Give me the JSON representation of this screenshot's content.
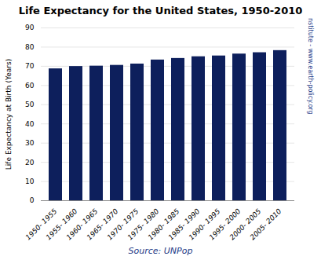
{
  "chart_data": {
    "type": "bar",
    "title": "Life Expectancy  for the United States, 1950-2010",
    "ylabel": "Life Expectancy at Birth (Years)",
    "annotations": [
      {
        "text": "Source: UNPop",
        "color": "#1f3c88"
      },
      {
        "text": "Earth Policy Institute - www.earth-policy.org",
        "color": "#1f3c88"
      }
    ],
    "categories": [
      "1950- 1955",
      "1955- 1960",
      "1960- 1965",
      "1965- 1970",
      "1970- 1975",
      "1975- 1980",
      "1980- 1985",
      "1985- 1990",
      "1990- 1995",
      "1995- 2000",
      "2000- 2005",
      "2005- 2010"
    ],
    "values": [
      68.7,
      69.9,
      70.1,
      70.5,
      71.2,
      73.3,
      74.1,
      75.0,
      75.4,
      76.4,
      77.1,
      78.2
    ],
    "color": "#0d1f5c",
    "ylim": [
      0,
      90
    ],
    "yticks": [
      0,
      10,
      20,
      30,
      40,
      50,
      60,
      70,
      80,
      90
    ],
    "grid": true
  }
}
